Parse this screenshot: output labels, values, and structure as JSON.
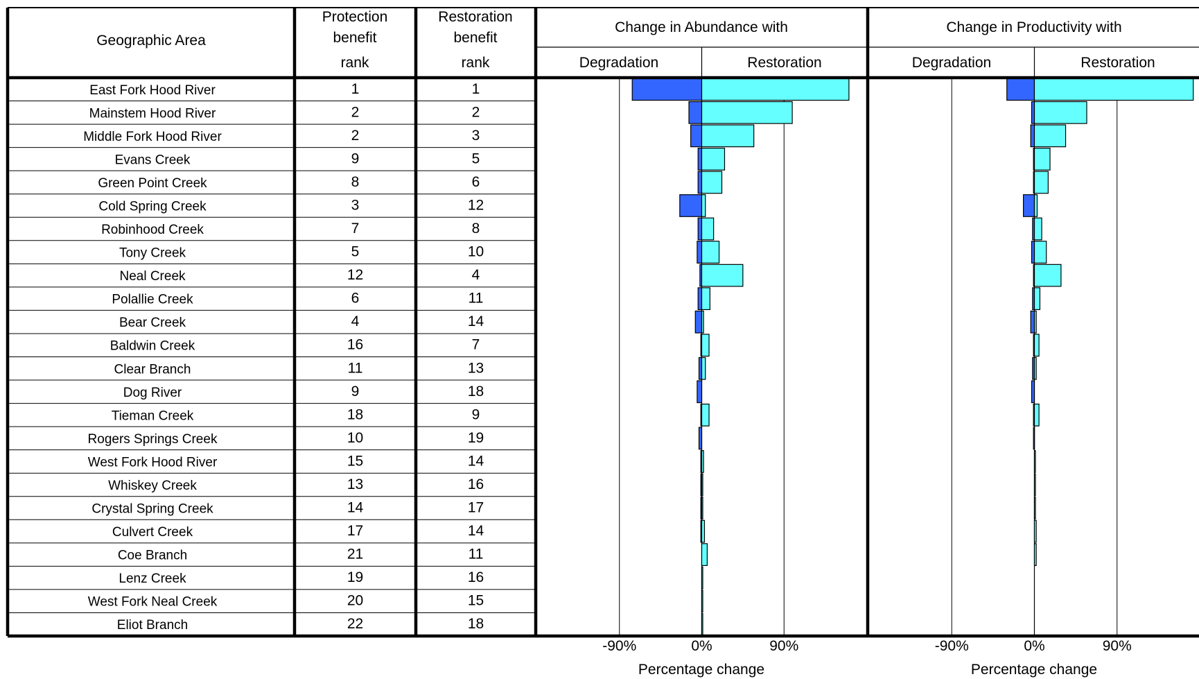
{
  "table": {
    "col_area": "Geographic Area",
    "col_protection": [
      "Protection",
      "benefit",
      "rank"
    ],
    "col_restoration": [
      "Restoration",
      "benefit",
      "rank"
    ]
  },
  "chart_data": {
    "type": "bar",
    "orientation": "horizontal",
    "categories": [
      "East Fork Hood River",
      "Mainstem Hood River",
      "Middle Fork Hood River",
      "Evans Creek",
      "Green Point Creek",
      "Cold Spring Creek",
      "Robinhood Creek",
      "Tony Creek",
      "Neal Creek",
      "Polallie Creek",
      "Bear Creek",
      "Baldwin Creek",
      "Clear Branch",
      "Dog River",
      "Tieman Creek",
      "Rogers Springs Creek",
      "West Fork Hood River",
      "Whiskey Creek",
      "Crystal Spring Creek",
      "Culvert Creek",
      "Coe Branch",
      "Lenz Creek",
      "West Fork Neal Creek",
      "Eliot Branch"
    ],
    "protection_rank": [
      1,
      2,
      2,
      9,
      8,
      3,
      7,
      5,
      12,
      6,
      4,
      16,
      11,
      9,
      18,
      10,
      15,
      13,
      14,
      17,
      21,
      19,
      20,
      22
    ],
    "restoration_rank": [
      1,
      2,
      3,
      5,
      6,
      12,
      8,
      10,
      4,
      11,
      14,
      7,
      13,
      18,
      9,
      19,
      14,
      16,
      17,
      14,
      11,
      16,
      15,
      18
    ],
    "panels": [
      {
        "title": "Change in Abundance with",
        "sub_left": "Degradation",
        "sub_right": "Restoration",
        "xlabel": "Percentage change",
        "xlim": [
          -180,
          180
        ],
        "ticks": [
          -90,
          0,
          90
        ],
        "tick_labels": [
          "-90%",
          "0%",
          "90%"
        ],
        "grid": true,
        "series": [
          {
            "role": "degradation",
            "color": "#3366ff",
            "values": [
              -76,
              -14,
              -12,
              -4,
              -4,
              -24,
              -4,
              -5,
              -2,
              -4,
              -7,
              -1,
              -3,
              -5,
              -1,
              -3,
              -1,
              -1,
              -1,
              -1,
              0,
              0,
              0,
              0
            ]
          },
          {
            "role": "restoration",
            "color": "#66ffff",
            "values": [
              161,
              99,
              57,
              25,
              22,
              4,
              13,
              19,
              45,
              9,
              2,
              8,
              4,
              0,
              8,
              0,
              2,
              1,
              1,
              3,
              6,
              1,
              1,
              1
            ]
          }
        ]
      },
      {
        "title": "Change in Productivity with",
        "sub_left": "Degradation",
        "sub_right": "Restoration",
        "xlabel": "Percentage change",
        "xlim": [
          -180,
          180
        ],
        "ticks": [
          -90,
          0,
          90
        ],
        "tick_labels": [
          "-90%",
          "0%",
          "90%"
        ],
        "grid": true,
        "series": [
          {
            "role": "degradation",
            "color": "#3366ff",
            "values": [
              -30,
              -3,
              -4,
              -1,
              -1,
              -12,
              -2,
              -3,
              -1,
              -2,
              -4,
              -1,
              -2,
              -3,
              -1,
              -1,
              0,
              0,
              0,
              0,
              0,
              0,
              0,
              0
            ]
          },
          {
            "role": "restoration",
            "color": "#66ffff",
            "values": [
              173,
              57,
              34,
              17,
              15,
              3,
              8,
              13,
              29,
              6,
              2,
              5,
              2,
              0,
              5,
              0,
              1,
              1,
              1,
              2,
              2,
              0,
              0,
              0
            ]
          }
        ]
      }
    ]
  }
}
